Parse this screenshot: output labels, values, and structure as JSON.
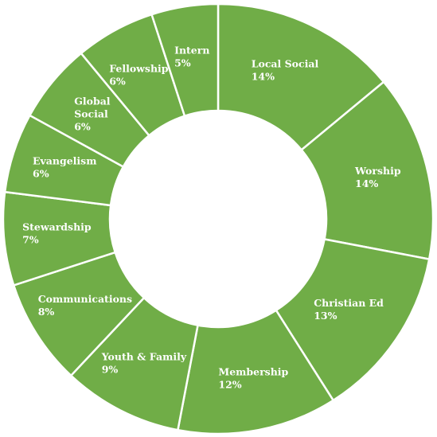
{
  "chart_data": {
    "type": "pie",
    "variant": "doughnut",
    "slice_color": "#70ad47",
    "separator_color": "#ffffff",
    "label_color": "#ffffff",
    "start_angle_deg": 0,
    "direction": "clockwise",
    "slices": [
      {
        "label_lines": [
          "Local Social"
        ],
        "value": 14,
        "value_label": "14%"
      },
      {
        "label_lines": [
          "Worship"
        ],
        "value": 14,
        "value_label": "14%"
      },
      {
        "label_lines": [
          "Christian  Ed"
        ],
        "value": 13,
        "value_label": "13%"
      },
      {
        "label_lines": [
          "Membership"
        ],
        "value": 12,
        "value_label": "12%"
      },
      {
        "label_lines": [
          "Youth & Family"
        ],
        "value": 9,
        "value_label": "9%"
      },
      {
        "label_lines": [
          "Communications"
        ],
        "value": 8,
        "value_label": "8%"
      },
      {
        "label_lines": [
          "Stewardship"
        ],
        "value": 7,
        "value_label": "7%"
      },
      {
        "label_lines": [
          "Evangelism"
        ],
        "value": 6,
        "value_label": "6%"
      },
      {
        "label_lines": [
          "Global",
          "Social"
        ],
        "value": 6,
        "value_label": "6%"
      },
      {
        "label_lines": [
          "Fellowship"
        ],
        "value": 6,
        "value_label": "6%"
      },
      {
        "label_lines": [
          "Intern"
        ],
        "value": 5,
        "value_label": "5%"
      }
    ]
  }
}
